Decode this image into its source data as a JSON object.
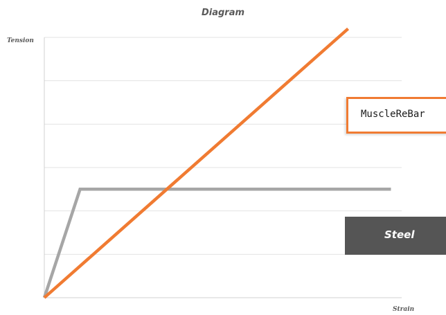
{
  "chart_data": {
    "type": "line",
    "title": "Diagram",
    "xlabel": "Strain",
    "ylabel": "Tension",
    "xlim": [
      0,
      10
    ],
    "ylim": [
      0,
      6
    ],
    "grid": true,
    "series": [
      {
        "name": "MuscleReBar",
        "color": "#f07b32",
        "x": [
          0,
          8.5
        ],
        "y": [
          0,
          6.2
        ]
      },
      {
        "name": "Steel",
        "color": "#a6a6a6",
        "x": [
          0,
          1.0,
          9.7
        ],
        "y": [
          0,
          2.5,
          2.5
        ]
      }
    ],
    "annotations": [
      {
        "text": "MuscleReBar",
        "style": "outlined",
        "border_color": "#f07b32"
      },
      {
        "text": "Steel",
        "style": "filled",
        "fill_color": "#555555"
      }
    ]
  }
}
